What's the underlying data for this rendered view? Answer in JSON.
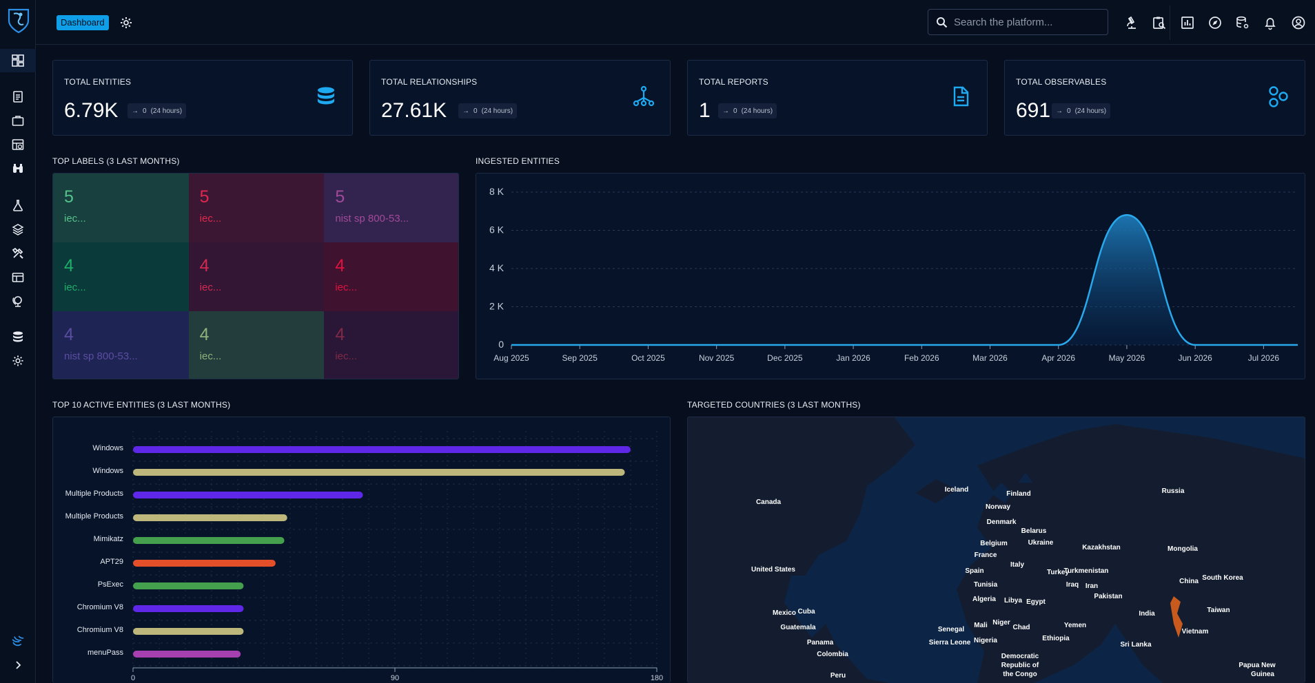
{
  "header": {
    "breadcrumb": "Dashboard",
    "search_placeholder": "Search the platform..."
  },
  "icons": {
    "sidebar": [
      "dashboard-icon",
      "analyses-icon",
      "cases-icon",
      "events-icon",
      "observations-icon",
      "threats-icon",
      "arsenal-icon",
      "techniques-icon",
      "entities-icon",
      "locations-icon",
      "data-icon",
      "settings-icon"
    ],
    "topbar": [
      "investigation-icon",
      "workspace-icon",
      "dashboards-icon",
      "explore-icon",
      "data-settings-icon",
      "notifications-icon",
      "account-icon"
    ]
  },
  "stats": [
    {
      "label": "TOTAL ENTITIES",
      "value": "6.79K",
      "delta": "0",
      "period": "(24 hours)",
      "icon": "database-icon"
    },
    {
      "label": "TOTAL RELATIONSHIPS",
      "value": "27.61K",
      "delta": "0",
      "period": "(24 hours)",
      "icon": "graph-icon"
    },
    {
      "label": "TOTAL REPORTS",
      "value": "1",
      "delta": "0",
      "period": "(24 hours)",
      "icon": "document-icon"
    },
    {
      "label": "TOTAL OBSERVABLES",
      "value": "691",
      "delta": "0",
      "period": "(24 hours)",
      "icon": "hexagons-icon"
    }
  ],
  "top_labels": {
    "title": "TOP LABELS (3 LAST MONTHS)",
    "tiles": [
      {
        "value": "5",
        "label": "iec...",
        "bg": "#18403e",
        "fg": "#55c28b"
      },
      {
        "value": "5",
        "label": "iec...",
        "bg": "#3b1734",
        "fg": "#e0284e"
      },
      {
        "value": "5",
        "label": "nist sp 800-53...",
        "bg": "#33234f",
        "fg": "#a24a9a"
      },
      {
        "value": "4",
        "label": "iec...",
        "bg": "#0a3a3a",
        "fg": "#1fae6a"
      },
      {
        "value": "4",
        "label": "iec...",
        "bg": "#321634",
        "fg": "#d42a52"
      },
      {
        "value": "4",
        "label": "iec...",
        "bg": "#3f1330",
        "fg": "#e2103e"
      },
      {
        "value": "4",
        "label": "nist sp 800-53...",
        "bg": "#1e2453",
        "fg": "#5b4da1"
      },
      {
        "value": "4",
        "label": "iec...",
        "bg": "#223d3c",
        "fg": "#8fb27c"
      },
      {
        "value": "4",
        "label": "iec...",
        "bg": "#2a1737",
        "fg": "#802947"
      }
    ]
  },
  "ingested": {
    "title": "INGESTED ENTITIES",
    "chart_data": {
      "type": "area",
      "categories": [
        "Aug 2025",
        "Sep 2025",
        "Oct 2025",
        "Nov 2025",
        "Dec 2025",
        "Jan 2026",
        "Feb 2026",
        "Mar 2026",
        "Apr 2026",
        "May 2026",
        "Jun 2026",
        "Jul 2026"
      ],
      "values": [
        0,
        0,
        0,
        0,
        0,
        0,
        0,
        0,
        0,
        6800,
        0,
        0
      ],
      "ylim": [
        0,
        8000
      ],
      "yticks": [
        "0",
        "2 K",
        "4 K",
        "6 K",
        "8 K"
      ],
      "color": "#29a9ec",
      "grid": true
    }
  },
  "top_entities": {
    "title": "TOP 10 ACTIVE ENTITIES (3 LAST MONTHS)",
    "chart_data": {
      "type": "bar",
      "orientation": "horizontal",
      "categories": [
        "Windows",
        "Windows",
        "Multiple Products",
        "Multiple Products",
        "Mimikatz",
        "APT29",
        "PsExec",
        "Chromium V8",
        "Chromium V8",
        "menuPass"
      ],
      "values": [
        171,
        169,
        79,
        53,
        52,
        49,
        38,
        38,
        38,
        37
      ],
      "colors": [
        "#5f27e8",
        "#bdb77b",
        "#5f27e8",
        "#bdb77b",
        "#44a04c",
        "#e24f28",
        "#44a04c",
        "#5f27e8",
        "#bdb77b",
        "#a640b0"
      ],
      "xlim": [
        0,
        180
      ],
      "xticks": [
        "0",
        "90",
        "180"
      ],
      "grid": true
    }
  },
  "countries": {
    "title": "TARGETED COUNTRIES (3 LAST MONTHS)",
    "labels": [
      "Iceland",
      "Finland",
      "Russia",
      "Canada",
      "Norway",
      "Denmark",
      "Belarus",
      "Belgium",
      "Ukraine",
      "France",
      "Kazakhstan",
      "Mongolia",
      "Italy",
      "United States",
      "Spain",
      "Turkey",
      "Turkmenistan",
      "China",
      "South Korea",
      "Tunisia",
      "Iraq",
      "Iran",
      "Pakistan",
      "Algeria",
      "Libya",
      "Egypt",
      "Mexico",
      "Cuba",
      "Taiwan",
      "India",
      "Guatemala",
      "Niger",
      "Senegal",
      "Mali",
      "Chad",
      "Yemen",
      "Vietnam",
      "Sierra Leone",
      "Nigeria",
      "Ethiopia",
      "Panama",
      "Sri Lanka",
      "Colombia",
      "Democratic",
      "Republic of",
      "the Congo",
      "Peru",
      "Papua New",
      "Guinea"
    ]
  }
}
